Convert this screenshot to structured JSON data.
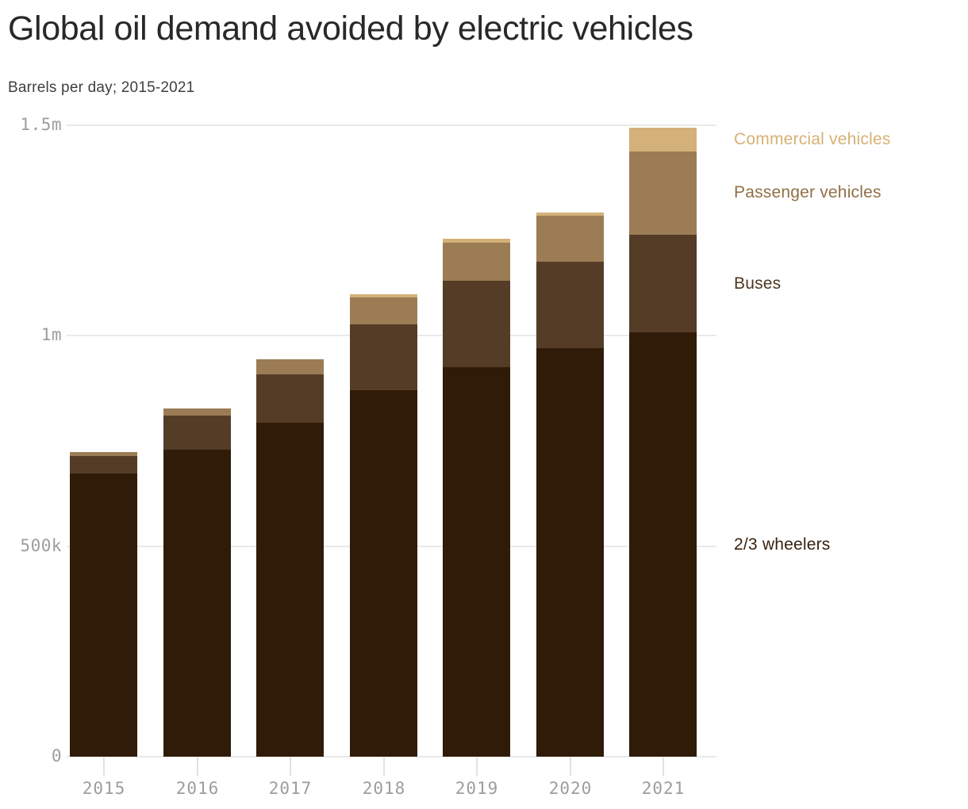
{
  "header": {
    "title": "Global oil demand avoided by electric vehicles",
    "subtitle": "Barrels per day; 2015-2021"
  },
  "chart_data": {
    "type": "bar",
    "stacked": true,
    "title": "Global oil demand avoided by electric vehicles",
    "subtitle": "Barrels per day; 2015-2021",
    "unit": "thousand barrels per day",
    "categories": [
      "2015",
      "2016",
      "2017",
      "2018",
      "2019",
      "2020",
      "2021"
    ],
    "series": [
      {
        "name": "2/3 wheelers",
        "color": "#2f1b08",
        "label_color": "#38220f",
        "values_k": [
          673,
          729,
          794,
          871,
          926,
          971,
          1008
        ]
      },
      {
        "name": "Buses",
        "color": "#543c26",
        "label_color": "#4d3821",
        "values_k": [
          41,
          81,
          115,
          156,
          205,
          205,
          232
        ]
      },
      {
        "name": "Passenger vehicles",
        "color": "#9b7c55",
        "label_color": "#8f7046",
        "values_k": [
          9,
          17,
          36,
          64,
          90,
          109,
          198
        ]
      },
      {
        "name": "Commercial vehicles",
        "color": "#d4b178",
        "label_color": "#d6b274",
        "values_k": [
          0,
          0,
          0,
          8,
          9,
          8,
          57
        ]
      }
    ],
    "totals_k": [
      723,
      827,
      945,
      1099,
      1230,
      1293,
      1495
    ],
    "y_axis": {
      "ticks": [
        "0",
        "500k",
        "1m",
        "1.5m"
      ],
      "tick_values_k": [
        0,
        500,
        1000,
        1500
      ],
      "max_k": 1500,
      "tick_color": "#9d9d9d"
    },
    "x_axis": {
      "label_color": "#9d9d9d"
    },
    "grid": "horizontal",
    "grid_color": "#e9e9e9",
    "legend_position": "right"
  }
}
